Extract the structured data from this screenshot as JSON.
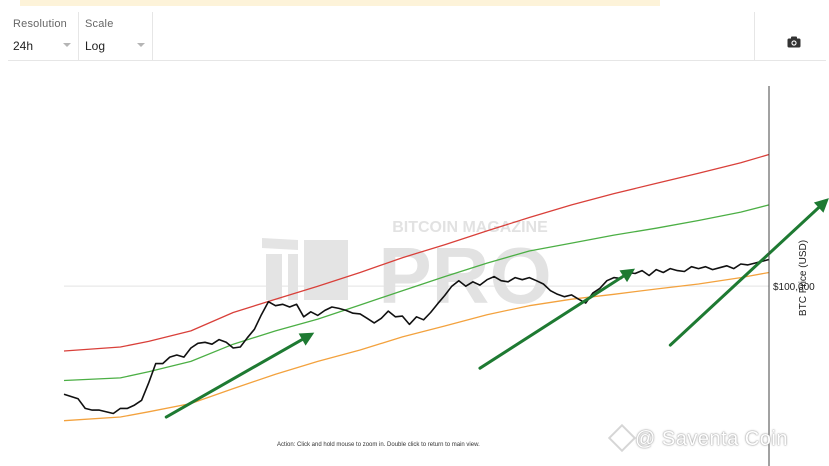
{
  "toolbar": {
    "resolution": {
      "label": "Resolution",
      "value": "24h"
    },
    "scale": {
      "label": "Scale",
      "value": "Log"
    },
    "camera_icon": "camera-icon"
  },
  "watermark": {
    "line1": "BITCOIN MAGAZINE",
    "line2": "PRO"
  },
  "hint": "Action: Click and hold mouse to zoom in.  Double click to return to main view.",
  "credit": "@ Saventa Coin",
  "colors": {
    "price": "#111111",
    "upper_band": "#d9403a",
    "middle_band": "#4caf45",
    "lower_band": "#f3a23e",
    "arrows": "#1e7a32",
    "grid": "#e3e3e3"
  },
  "chart_data": {
    "type": "line",
    "ylabel": "BTC Price (USD)",
    "y_scale": "log",
    "y_ticks": [
      {
        "value": 100000,
        "label": "$100,000"
      }
    ],
    "ylim": [
      20000,
      600000
    ],
    "xlim": [
      0,
      100
    ],
    "series": [
      {
        "color": "#111111",
        "x": [
          0,
          2,
          3,
          4,
          5,
          7,
          8,
          9,
          10,
          11,
          12,
          13,
          14,
          15,
          16,
          17,
          18,
          19,
          20,
          21,
          22,
          23,
          24,
          25,
          26,
          27,
          28,
          29,
          30,
          31,
          32,
          33,
          34,
          35,
          36,
          37,
          38,
          39,
          40,
          41,
          42,
          43,
          44,
          45,
          46,
          47,
          48,
          49,
          50,
          51,
          52,
          53,
          54,
          55,
          56,
          57,
          58,
          59,
          60,
          61,
          62,
          63,
          64,
          65,
          66,
          67,
          68,
          69,
          70,
          71,
          72,
          73,
          74,
          75,
          76,
          77,
          78,
          79,
          80,
          81,
          82,
          83,
          84,
          85,
          86,
          87,
          88,
          89,
          90,
          91,
          92,
          93,
          94,
          95,
          96,
          97,
          98,
          99,
          100
        ],
        "values": [
          38000,
          36500,
          33500,
          33000,
          33000,
          32000,
          33500,
          33500,
          34500,
          36000,
          42000,
          50000,
          50000,
          53000,
          54000,
          53000,
          57500,
          60000,
          60500,
          59500,
          62000,
          60500,
          57500,
          58000,
          63000,
          68000,
          77500,
          87000,
          84000,
          85000,
          83000,
          85000,
          76000,
          79500,
          77000,
          80500,
          83000,
          82000,
          80500,
          78500,
          78000,
          75000,
          72000,
          75000,
          80000,
          76000,
          76500,
          71000,
          76000,
          74000,
          79000,
          85500,
          92000,
          100000,
          105000,
          100000,
          104000,
          101000,
          106000,
          109000,
          105000,
          104000,
          108000,
          106000,
          108000,
          105000,
          102000,
          96000,
          93000,
          91000,
          92500,
          89000,
          86000,
          94000,
          98000,
          105000,
          108000,
          107000,
          113000,
          112000,
          115000,
          110000,
          116000,
          113000,
          117000,
          115000,
          114000,
          119000,
          117000,
          119000,
          116000,
          118000,
          120000,
          117000,
          122000,
          121000,
          123000,
          125000,
          127000
        ]
      },
      {
        "color": "#d9403a",
        "x": [
          0,
          8,
          12,
          18,
          24,
          30,
          36,
          42,
          48,
          54,
          60,
          66,
          72,
          78,
          84,
          90,
          96,
          100
        ],
        "values": [
          56000,
          58000,
          61000,
          67000,
          79000,
          89000,
          100000,
          113000,
          129000,
          145000,
          164000,
          185000,
          207000,
          229000,
          251000,
          275000,
          302000,
          325000
        ]
      },
      {
        "color": "#4caf45",
        "x": [
          0,
          8,
          12,
          18,
          24,
          30,
          36,
          42,
          48,
          54,
          60,
          66,
          72,
          78,
          84,
          90,
          96,
          100
        ],
        "values": [
          43000,
          44000,
          46500,
          51000,
          59500,
          67000,
          74500,
          84500,
          96000,
          109000,
          123000,
          137000,
          147000,
          158000,
          168000,
          180000,
          194000,
          207000
        ]
      },
      {
        "color": "#f3a23e",
        "x": [
          0,
          8,
          12,
          18,
          24,
          30,
          36,
          42,
          48,
          54,
          60,
          66,
          72,
          78,
          84,
          90,
          96,
          100
        ],
        "values": [
          30000,
          31000,
          32500,
          35000,
          40000,
          45500,
          51000,
          56500,
          63500,
          70000,
          77500,
          84000,
          89000,
          93000,
          97500,
          102000,
          108000,
          113000
        ]
      }
    ],
    "annotations": [
      {
        "type": "arrow",
        "from": [
          14.5,
          31000
        ],
        "to": [
          35.5,
          66000
        ]
      },
      {
        "type": "arrow",
        "from": [
          59,
          48000
        ],
        "to": [
          81,
          117000
        ]
      },
      {
        "type": "arrow",
        "from": [
          86,
          59000
        ],
        "to": [
          108.5,
          220000
        ]
      }
    ]
  }
}
